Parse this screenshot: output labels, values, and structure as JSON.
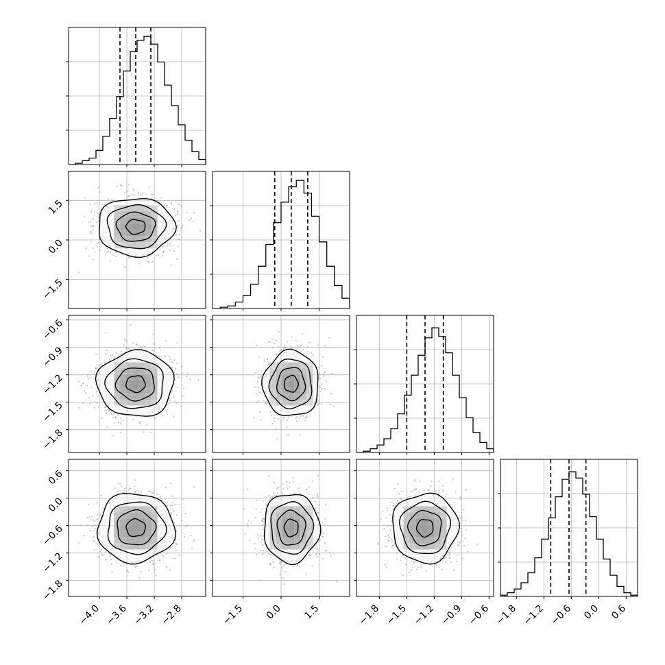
{
  "figure": {
    "type": "corner-plot"
  },
  "colors": {
    "axis": "#000000",
    "grid": "#b0b0b0",
    "scatter": "#9a9a9a",
    "contour": "#000000",
    "quantile_line": "#000000"
  },
  "chart_data": [
    {
      "type": "histogram",
      "row": 0,
      "col": 0,
      "title": "",
      "xlabel": "",
      "ylabel": "",
      "xlim": [
        -4.45,
        -2.45
      ],
      "ylim": [
        0,
        1.07
      ],
      "x_ticks": [
        -4.0,
        -3.6,
        -3.2,
        -2.8
      ],
      "x_tick_labels": [
        "−4.0",
        "−3.6",
        "−3.2",
        "−2.8"
      ],
      "y_tick_labels": [],
      "bins": [
        [
          -4.45,
          0.0
        ],
        [
          -4.35,
          0.01
        ],
        [
          -4.25,
          0.03
        ],
        [
          -4.15,
          0.05
        ],
        [
          -4.05,
          0.11
        ],
        [
          -3.95,
          0.22
        ],
        [
          -3.85,
          0.36
        ],
        [
          -3.75,
          0.53
        ],
        [
          -3.65,
          0.73
        ],
        [
          -3.55,
          0.88
        ],
        [
          -3.45,
          0.97
        ],
        [
          -3.35,
          1.0
        ],
        [
          -3.25,
          0.94
        ],
        [
          -3.15,
          0.8
        ],
        [
          -3.05,
          0.62
        ],
        [
          -2.95,
          0.46
        ],
        [
          -2.85,
          0.31
        ],
        [
          -2.75,
          0.19
        ],
        [
          -2.65,
          0.1
        ],
        [
          -2.55,
          0.04
        ]
      ],
      "quantiles": [
        -3.7,
        -3.47,
        -3.25
      ],
      "grid": true
    },
    {
      "type": "scatter-density",
      "row": 1,
      "col": 0,
      "title": "",
      "xlabel": "",
      "ylabel": "",
      "xlim": [
        -4.45,
        -2.45
      ],
      "ylim": [
        -2.6,
        2.6
      ],
      "x_ticks": [
        -4.0,
        -3.6,
        -3.2,
        -2.8
      ],
      "x_tick_labels": [
        "−4.0",
        "−3.6",
        "−3.2",
        "−2.8"
      ],
      "y_ticks": [
        -1.5,
        0.0,
        1.5
      ],
      "y_tick_labels": [
        "−1.5",
        "0.0",
        "1.5"
      ],
      "center": [
        -3.47,
        0.5
      ],
      "spread": [
        0.28,
        0.55
      ],
      "contour_levels": [
        2.0,
        1.5,
        1.0,
        0.5
      ],
      "grid": true
    },
    {
      "type": "histogram",
      "row": 1,
      "col": 1,
      "title": "",
      "xlabel": "",
      "ylabel": "",
      "xlim": [
        -2.7,
        2.7
      ],
      "ylim": [
        0,
        1.07
      ],
      "x_ticks": [
        -1.5,
        0.0,
        1.5
      ],
      "x_tick_labels": [
        "−1.5",
        "0.0",
        "1.5"
      ],
      "y_tick_labels": [],
      "bins": [
        [
          -2.7,
          0.0
        ],
        [
          -2.4,
          0.01
        ],
        [
          -2.1,
          0.02
        ],
        [
          -1.8,
          0.05
        ],
        [
          -1.5,
          0.1
        ],
        [
          -1.2,
          0.19
        ],
        [
          -0.9,
          0.33
        ],
        [
          -0.6,
          0.5
        ],
        [
          -0.3,
          0.67
        ],
        [
          0.0,
          0.83
        ],
        [
          0.3,
          0.95
        ],
        [
          0.6,
          1.0
        ],
        [
          0.9,
          0.9
        ],
        [
          1.2,
          0.72
        ],
        [
          1.5,
          0.52
        ],
        [
          1.8,
          0.33
        ],
        [
          2.1,
          0.18
        ],
        [
          2.4,
          0.08
        ]
      ],
      "quantiles": [
        -0.25,
        0.4,
        1.05
      ],
      "grid": true
    },
    {
      "type": "scatter-density",
      "row": 2,
      "col": 0,
      "title": "",
      "xlabel": "",
      "ylabel": "",
      "xlim": [
        -4.45,
        -2.45
      ],
      "ylim": [
        -2.05,
        -0.55
      ],
      "x_ticks": [
        -4.0,
        -3.6,
        -3.2,
        -2.8
      ],
      "x_tick_labels": [
        "−4.0",
        "−3.6",
        "−3.2",
        "−2.8"
      ],
      "y_ticks": [
        -1.8,
        -1.5,
        -1.2,
        -0.9,
        -0.6
      ],
      "y_tick_labels": [
        "−1.8",
        "−1.5",
        "−1.2",
        "−0.9",
        "−0.6"
      ],
      "center": [
        -3.47,
        -1.3
      ],
      "spread": [
        0.28,
        0.18
      ],
      "contour_levels": [
        2.0,
        1.5,
        1.0,
        0.5
      ],
      "grid": true
    },
    {
      "type": "scatter-density",
      "row": 2,
      "col": 1,
      "title": "",
      "xlabel": "",
      "ylabel": "",
      "xlim": [
        -2.7,
        2.7
      ],
      "ylim": [
        -2.05,
        -0.55
      ],
      "x_ticks": [
        -1.5,
        0.0,
        1.5
      ],
      "x_tick_labels": [
        "−1.5",
        "0.0",
        "1.5"
      ],
      "y_ticks": [
        -1.8,
        -1.5,
        -1.2,
        -0.9,
        -0.6
      ],
      "y_tick_labels": [
        "−1.8",
        "−1.5",
        "−1.2",
        "−0.9",
        "−0.6"
      ],
      "center": [
        0.4,
        -1.3
      ],
      "spread": [
        0.55,
        0.18
      ],
      "contour_levels": [
        2.0,
        1.5,
        1.0,
        0.5
      ],
      "grid": true
    },
    {
      "type": "histogram",
      "row": 2,
      "col": 2,
      "title": "",
      "xlabel": "",
      "ylabel": "",
      "xlim": [
        -2.05,
        -0.55
      ],
      "ylim": [
        0,
        1.1
      ],
      "x_ticks": [
        -1.8,
        -1.5,
        -1.2,
        -0.9,
        -0.6
      ],
      "x_tick_labels": [
        "−1.8",
        "−1.5",
        "−1.2",
        "−0.9",
        "−0.6"
      ],
      "y_tick_labels": [],
      "bins": [
        [
          -2.05,
          0.0
        ],
        [
          -1.975,
          0.01
        ],
        [
          -1.9,
          0.03
        ],
        [
          -1.825,
          0.06
        ],
        [
          -1.75,
          0.11
        ],
        [
          -1.675,
          0.19
        ],
        [
          -1.6,
          0.31
        ],
        [
          -1.525,
          0.46
        ],
        [
          -1.45,
          0.62
        ],
        [
          -1.375,
          0.78
        ],
        [
          -1.3,
          0.92
        ],
        [
          -1.225,
          1.0
        ],
        [
          -1.15,
          0.93
        ],
        [
          -1.075,
          0.8
        ],
        [
          -1.0,
          0.62
        ],
        [
          -0.925,
          0.44
        ],
        [
          -0.85,
          0.28
        ],
        [
          -0.775,
          0.16
        ],
        [
          -0.7,
          0.08
        ],
        [
          -0.625,
          0.03
        ]
      ],
      "quantiles": [
        -1.5,
        -1.3,
        -1.1
      ],
      "grid": true
    },
    {
      "type": "scatter-density",
      "row": 3,
      "col": 0,
      "title": "",
      "xlabel": "",
      "ylabel": "",
      "xlim": [
        -4.45,
        -2.45
      ],
      "ylim": [
        -2.15,
        0.85
      ],
      "x_ticks": [
        -4.0,
        -3.6,
        -3.2,
        -2.8
      ],
      "x_tick_labels": [
        "−4.0",
        "−3.6",
        "−3.2",
        "−2.8"
      ],
      "y_ticks": [
        -1.8,
        -1.2,
        -0.6,
        0.0,
        0.6
      ],
      "y_tick_labels": [
        "−1.8",
        "−1.2",
        "−0.6",
        "0.0",
        "0.6"
      ],
      "center": [
        -3.47,
        -0.65
      ],
      "spread": [
        0.28,
        0.38
      ],
      "contour_levels": [
        2.0,
        1.5,
        1.0,
        0.5
      ],
      "grid": true
    },
    {
      "type": "scatter-density",
      "row": 3,
      "col": 1,
      "title": "",
      "xlabel": "",
      "ylabel": "",
      "xlim": [
        -2.7,
        2.7
      ],
      "ylim": [
        -2.15,
        0.85
      ],
      "x_ticks": [
        -1.5,
        0.0,
        1.5
      ],
      "x_tick_labels": [
        "−1.5",
        "0.0",
        "1.5"
      ],
      "y_ticks": [
        -1.8,
        -1.2,
        -0.6,
        0.0,
        0.6
      ],
      "y_tick_labels": [
        "−1.8",
        "−1.2",
        "−0.6",
        "0.0",
        "0.6"
      ],
      "center": [
        0.4,
        -0.65
      ],
      "spread": [
        0.55,
        0.38
      ],
      "contour_levels": [
        2.0,
        1.5,
        1.0,
        0.5
      ],
      "grid": true
    },
    {
      "type": "scatter-density",
      "row": 3,
      "col": 2,
      "title": "",
      "xlabel": "",
      "ylabel": "",
      "xlim": [
        -2.05,
        -0.55
      ],
      "ylim": [
        -2.15,
        0.85
      ],
      "x_ticks": [
        -1.8,
        -1.5,
        -1.2,
        -0.9,
        -0.6
      ],
      "x_tick_labels": [
        "−1.8",
        "−1.5",
        "−1.2",
        "−0.9",
        "−0.6"
      ],
      "y_ticks": [
        -1.8,
        -1.2,
        -0.6,
        0.0,
        0.6
      ],
      "y_tick_labels": [
        "−1.8",
        "−1.2",
        "−0.6",
        "0.0",
        "0.6"
      ],
      "center": [
        -1.3,
        -0.65
      ],
      "spread": [
        0.18,
        0.38
      ],
      "contour_levels": [
        2.0,
        1.5,
        1.0,
        0.5
      ],
      "grid": true
    },
    {
      "type": "histogram",
      "row": 3,
      "col": 3,
      "title": "",
      "xlabel": "",
      "ylabel": "",
      "xlim": [
        -2.15,
        0.85
      ],
      "ylim": [
        0,
        1.1
      ],
      "x_ticks": [
        -1.8,
        -1.2,
        -0.6,
        0.0,
        0.6
      ],
      "x_tick_labels": [
        "−1.8",
        "−1.2",
        "−0.6",
        "0.0",
        "0.6"
      ],
      "y_tick_labels": [],
      "bins": [
        [
          -2.15,
          0.01
        ],
        [
          -2.0,
          0.03
        ],
        [
          -1.85,
          0.06
        ],
        [
          -1.7,
          0.11
        ],
        [
          -1.55,
          0.19
        ],
        [
          -1.4,
          0.31
        ],
        [
          -1.25,
          0.46
        ],
        [
          -1.1,
          0.63
        ],
        [
          -0.95,
          0.8
        ],
        [
          -0.8,
          0.94
        ],
        [
          -0.65,
          1.0
        ],
        [
          -0.5,
          0.95
        ],
        [
          -0.35,
          0.82
        ],
        [
          -0.2,
          0.64
        ],
        [
          -0.05,
          0.46
        ],
        [
          0.1,
          0.3
        ],
        [
          0.25,
          0.17
        ],
        [
          0.4,
          0.08
        ],
        [
          0.55,
          0.03
        ],
        [
          0.7,
          0.01
        ]
      ],
      "quantiles": [
        -1.05,
        -0.65,
        -0.28
      ],
      "grid": true
    }
  ]
}
